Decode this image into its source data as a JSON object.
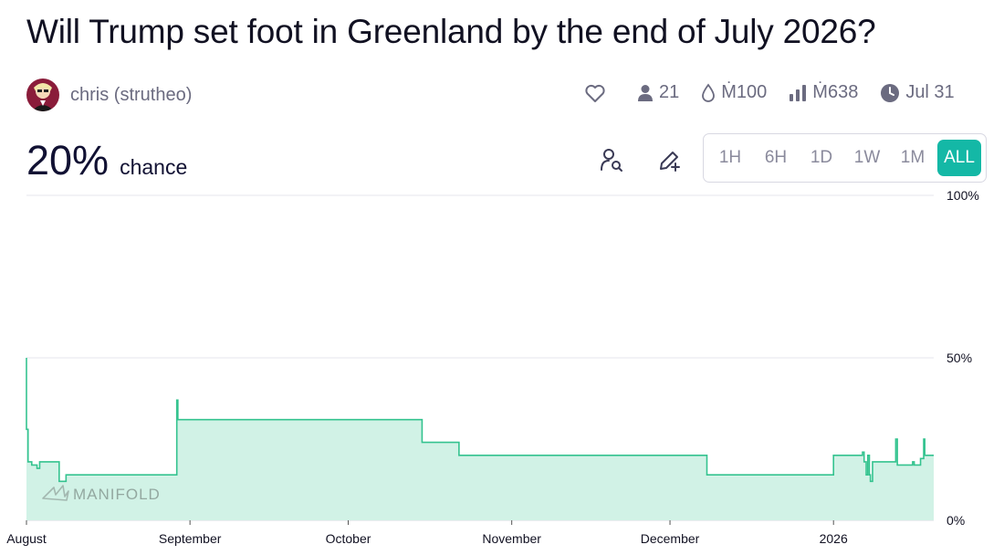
{
  "question": {
    "title": "Will Trump set foot in Greenland by the end of July 2026?"
  },
  "author": {
    "name": "chris (strutheo)",
    "avatar_icon": "avatar-icon"
  },
  "stats": {
    "favorite_icon": "heart-icon",
    "traders": "21",
    "liquidity": "Ṁ100",
    "volume": "Ṁ638",
    "close_date": "Jul 31"
  },
  "probability": {
    "value": "20%",
    "label": "chance"
  },
  "tools": {
    "search_icon": "user-search-icon",
    "edit_icon": "pencil-plus-icon"
  },
  "time_range": {
    "options": [
      "1H",
      "6H",
      "1D",
      "1W",
      "1M",
      "ALL"
    ],
    "selected": "ALL"
  },
  "watermark": "MANIFOLD",
  "colors": {
    "accent": "#14b8a6",
    "line": "#34c38f",
    "fill": "#d1f2e6"
  },
  "chart_data": {
    "type": "area",
    "x_tick_labels": [
      "August",
      "September",
      "October",
      "November",
      "December",
      "2026"
    ],
    "x_tick_days": [
      0,
      31,
      61,
      92,
      122,
      153
    ],
    "y_tick_labels": [
      "100%",
      "50%",
      "0%"
    ],
    "ylim": [
      0,
      100
    ],
    "xlim_days": [
      0,
      172
    ],
    "series": [
      {
        "step_points": [
          [
            0,
            50
          ],
          [
            0,
            28
          ],
          [
            0.3,
            18
          ],
          [
            1,
            17
          ],
          [
            2,
            16
          ],
          [
            2.5,
            18
          ],
          [
            6,
            18
          ],
          [
            6.2,
            12
          ],
          [
            7,
            12
          ],
          [
            7.5,
            14
          ],
          [
            28.5,
            14
          ],
          [
            28.5,
            37
          ],
          [
            28.7,
            31
          ],
          [
            75,
            31
          ],
          [
            75,
            24
          ],
          [
            82,
            24
          ],
          [
            82,
            20
          ],
          [
            129,
            20
          ],
          [
            129,
            14
          ],
          [
            153,
            14
          ],
          [
            153,
            20
          ],
          [
            158.5,
            20
          ],
          [
            158.5,
            21
          ],
          [
            158.8,
            18
          ],
          [
            159.2,
            14
          ],
          [
            159.5,
            20
          ],
          [
            159.8,
            14
          ],
          [
            160,
            12
          ],
          [
            160.4,
            18
          ],
          [
            164.6,
            18
          ],
          [
            164.8,
            25
          ],
          [
            165.1,
            17
          ],
          [
            167.7,
            17
          ],
          [
            168,
            18
          ],
          [
            168.3,
            17
          ],
          [
            169,
            17
          ],
          [
            169.5,
            19
          ],
          [
            170.1,
            25
          ],
          [
            170.3,
            20
          ],
          [
            172,
            20
          ]
        ]
      }
    ]
  }
}
